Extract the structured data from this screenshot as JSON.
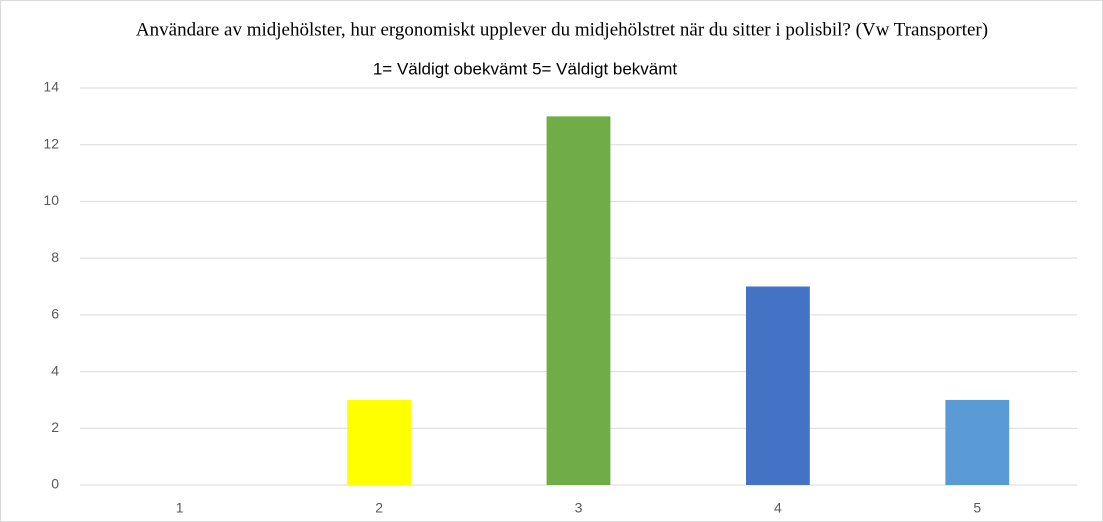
{
  "chart_data": {
    "type": "bar",
    "title": "Användare av midjehölster, hur ergonomiskt upplever du midjehölstret när du sitter i polisbil? (Vw Transporter)",
    "subtitle": "1= Väldigt obekvämt 5= Väldigt bekvämt",
    "categories": [
      "1",
      "2",
      "3",
      "4",
      "5"
    ],
    "values": [
      0,
      3,
      13,
      7,
      3
    ],
    "colors": [
      "#4472c4",
      "#ffff00",
      "#70ad47",
      "#4472c4",
      "#5b9bd5"
    ],
    "ylim": [
      0,
      14
    ],
    "yticks": [
      0,
      2,
      4,
      6,
      8,
      10,
      12,
      14
    ],
    "grid": true
  }
}
